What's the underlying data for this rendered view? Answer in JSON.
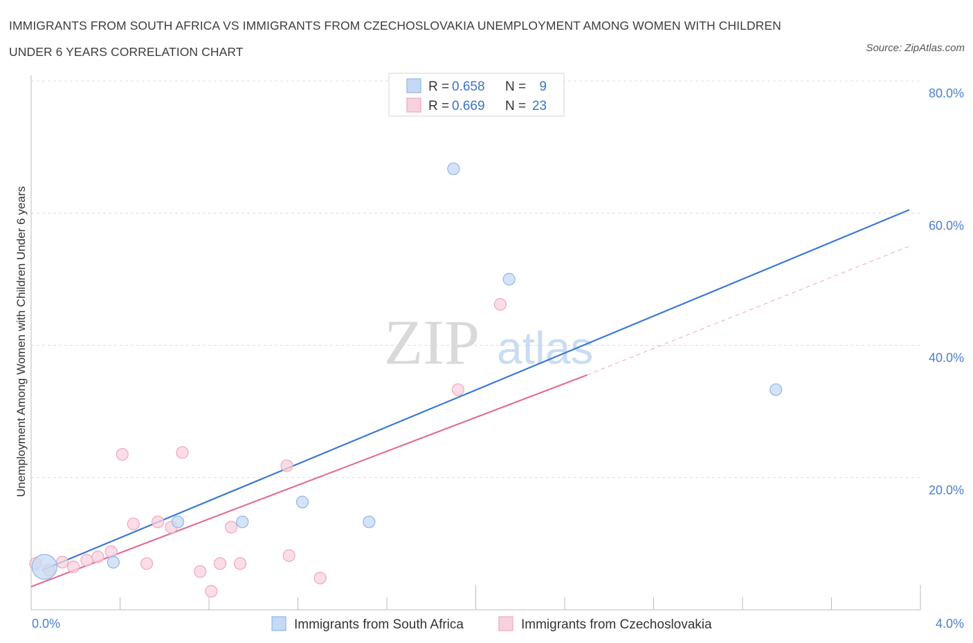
{
  "title": "IMMIGRANTS FROM SOUTH AFRICA VS IMMIGRANTS FROM CZECHOSLOVAKIA UNEMPLOYMENT AMONG WOMEN WITH CHILDREN UNDER 6 YEARS CORRELATION CHART",
  "source": "Source: ZipAtlas.com",
  "watermark": {
    "zip": "ZIP",
    "atlas": "atlas"
  },
  "legend": {
    "series1": {
      "r_label": "R =",
      "r_value": "0.658",
      "n_label": "N =",
      "n_value": "9"
    },
    "series2": {
      "r_label": "R =",
      "r_value": "0.669",
      "n_label": "N =",
      "n_value": "23"
    }
  },
  "chart_data": {
    "type": "scatter",
    "ylabel": "Unemployment Among Women with Children Under 6 years",
    "xlim": [
      0,
      4
    ],
    "ylim": [
      0,
      80
    ],
    "x_tick_labels": [
      "0.0%",
      "4.0%"
    ],
    "y_ticks": [
      20,
      40,
      60,
      80
    ],
    "y_tick_labels": [
      "20.0%",
      "40.0%",
      "60.0%",
      "80.0%"
    ],
    "grid": true,
    "series": [
      {
        "name": "Immigrants from South Africa",
        "color": "#8fb6ea",
        "fill": "#c5d9f4",
        "line_color": "#3a78d4",
        "points": [
          {
            "x": 0.06,
            "y": 6.5,
            "size": "large"
          },
          {
            "x": 0.37,
            "y": 7.2
          },
          {
            "x": 0.66,
            "y": 13.3
          },
          {
            "x": 0.95,
            "y": 13.3
          },
          {
            "x": 1.22,
            "y": 16.3
          },
          {
            "x": 1.52,
            "y": 13.3
          },
          {
            "x": 1.9,
            "y": 66.7
          },
          {
            "x": 2.15,
            "y": 50.0
          },
          {
            "x": 3.35,
            "y": 33.3
          }
        ],
        "trend": {
          "x0": 0.05,
          "y0": 6.0,
          "x1": 3.95,
          "y1": 60.5
        }
      },
      {
        "name": "Immigrants from Czechoslovakia",
        "color": "#f0a7bf",
        "fill": "#f8d1de",
        "line_color": "#e06e98",
        "points": [
          {
            "x": 0.02,
            "y": 7.0
          },
          {
            "x": 0.08,
            "y": 6.0
          },
          {
            "x": 0.14,
            "y": 7.2
          },
          {
            "x": 0.19,
            "y": 6.5
          },
          {
            "x": 0.25,
            "y": 7.5
          },
          {
            "x": 0.3,
            "y": 8.0
          },
          {
            "x": 0.36,
            "y": 8.8
          },
          {
            "x": 0.41,
            "y": 23.5
          },
          {
            "x": 0.46,
            "y": 13.0
          },
          {
            "x": 0.52,
            "y": 7.0
          },
          {
            "x": 0.57,
            "y": 13.3
          },
          {
            "x": 0.63,
            "y": 12.5
          },
          {
            "x": 0.68,
            "y": 23.8
          },
          {
            "x": 0.76,
            "y": 5.8
          },
          {
            "x": 0.81,
            "y": 2.8
          },
          {
            "x": 0.85,
            "y": 7.0
          },
          {
            "x": 0.9,
            "y": 12.5
          },
          {
            "x": 0.94,
            "y": 7.0
          },
          {
            "x": 1.15,
            "y": 21.8
          },
          {
            "x": 1.16,
            "y": 8.2
          },
          {
            "x": 1.3,
            "y": 4.8
          },
          {
            "x": 1.92,
            "y": 33.3
          },
          {
            "x": 2.11,
            "y": 46.2
          }
        ],
        "trend": {
          "x0": 0.0,
          "y0": 3.5,
          "x1": 2.5,
          "y1": 35.5
        },
        "trend_dashed": {
          "x0": 2.5,
          "y0": 35.5,
          "x1": 3.95,
          "y1": 55.0
        }
      }
    ]
  }
}
